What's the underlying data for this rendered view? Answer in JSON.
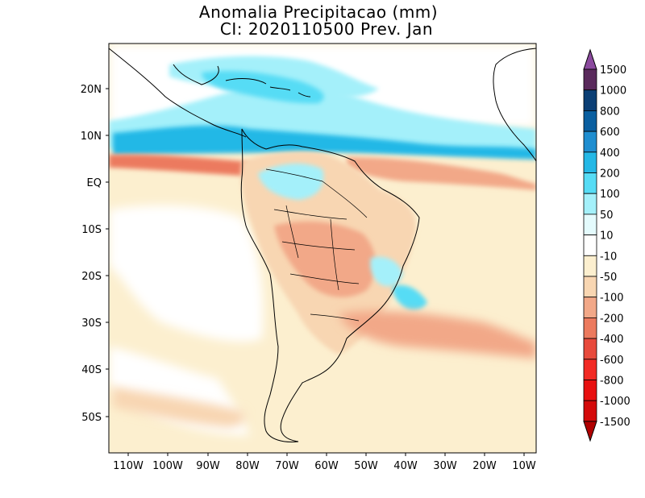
{
  "figure": {
    "title_line1": "Anomalia Precipitacao (mm)",
    "title_line2": "CI: 2020110500 Prev. Jan"
  },
  "map": {
    "region": "South America",
    "lat_labels": [
      "20N",
      "10N",
      "EQ",
      "10S",
      "20S",
      "30S",
      "40S",
      "50S"
    ],
    "lon_labels": [
      "110W",
      "100W",
      "90W",
      "80W",
      "70W",
      "60W",
      "50W",
      "40W",
      "30W",
      "20W",
      "10W"
    ]
  },
  "colorbar": {
    "levels": [
      {
        "label": "1500",
        "color": "#8b4a9e"
      },
      {
        "label": "1000",
        "color": "#5a2a5c"
      },
      {
        "label": "800",
        "color": "#0b3f75"
      },
      {
        "label": "600",
        "color": "#0a5fa0"
      },
      {
        "label": "400",
        "color": "#1f8ed0"
      },
      {
        "label": "200",
        "color": "#24b8e6"
      },
      {
        "label": "100",
        "color": "#56dcf5"
      },
      {
        "label": "50",
        "color": "#a4f0fa"
      },
      {
        "label": "10",
        "color": "#e4fbfd"
      },
      {
        "label": "-10",
        "color": "#ffffff"
      },
      {
        "label": "-50",
        "color": "#fcefcf"
      },
      {
        "label": "-100",
        "color": "#f8d6b2"
      },
      {
        "label": "-200",
        "color": "#f2a888"
      },
      {
        "label": "-400",
        "color": "#ec7a5e"
      },
      {
        "label": "-600",
        "color": "#e84a3c"
      },
      {
        "label": "-800",
        "color": "#f22a24"
      },
      {
        "label": "-1000",
        "color": "#e81010"
      },
      {
        "label": "-1500",
        "color": "#d40a0a"
      }
    ],
    "bottom_color": "#b00000"
  }
}
